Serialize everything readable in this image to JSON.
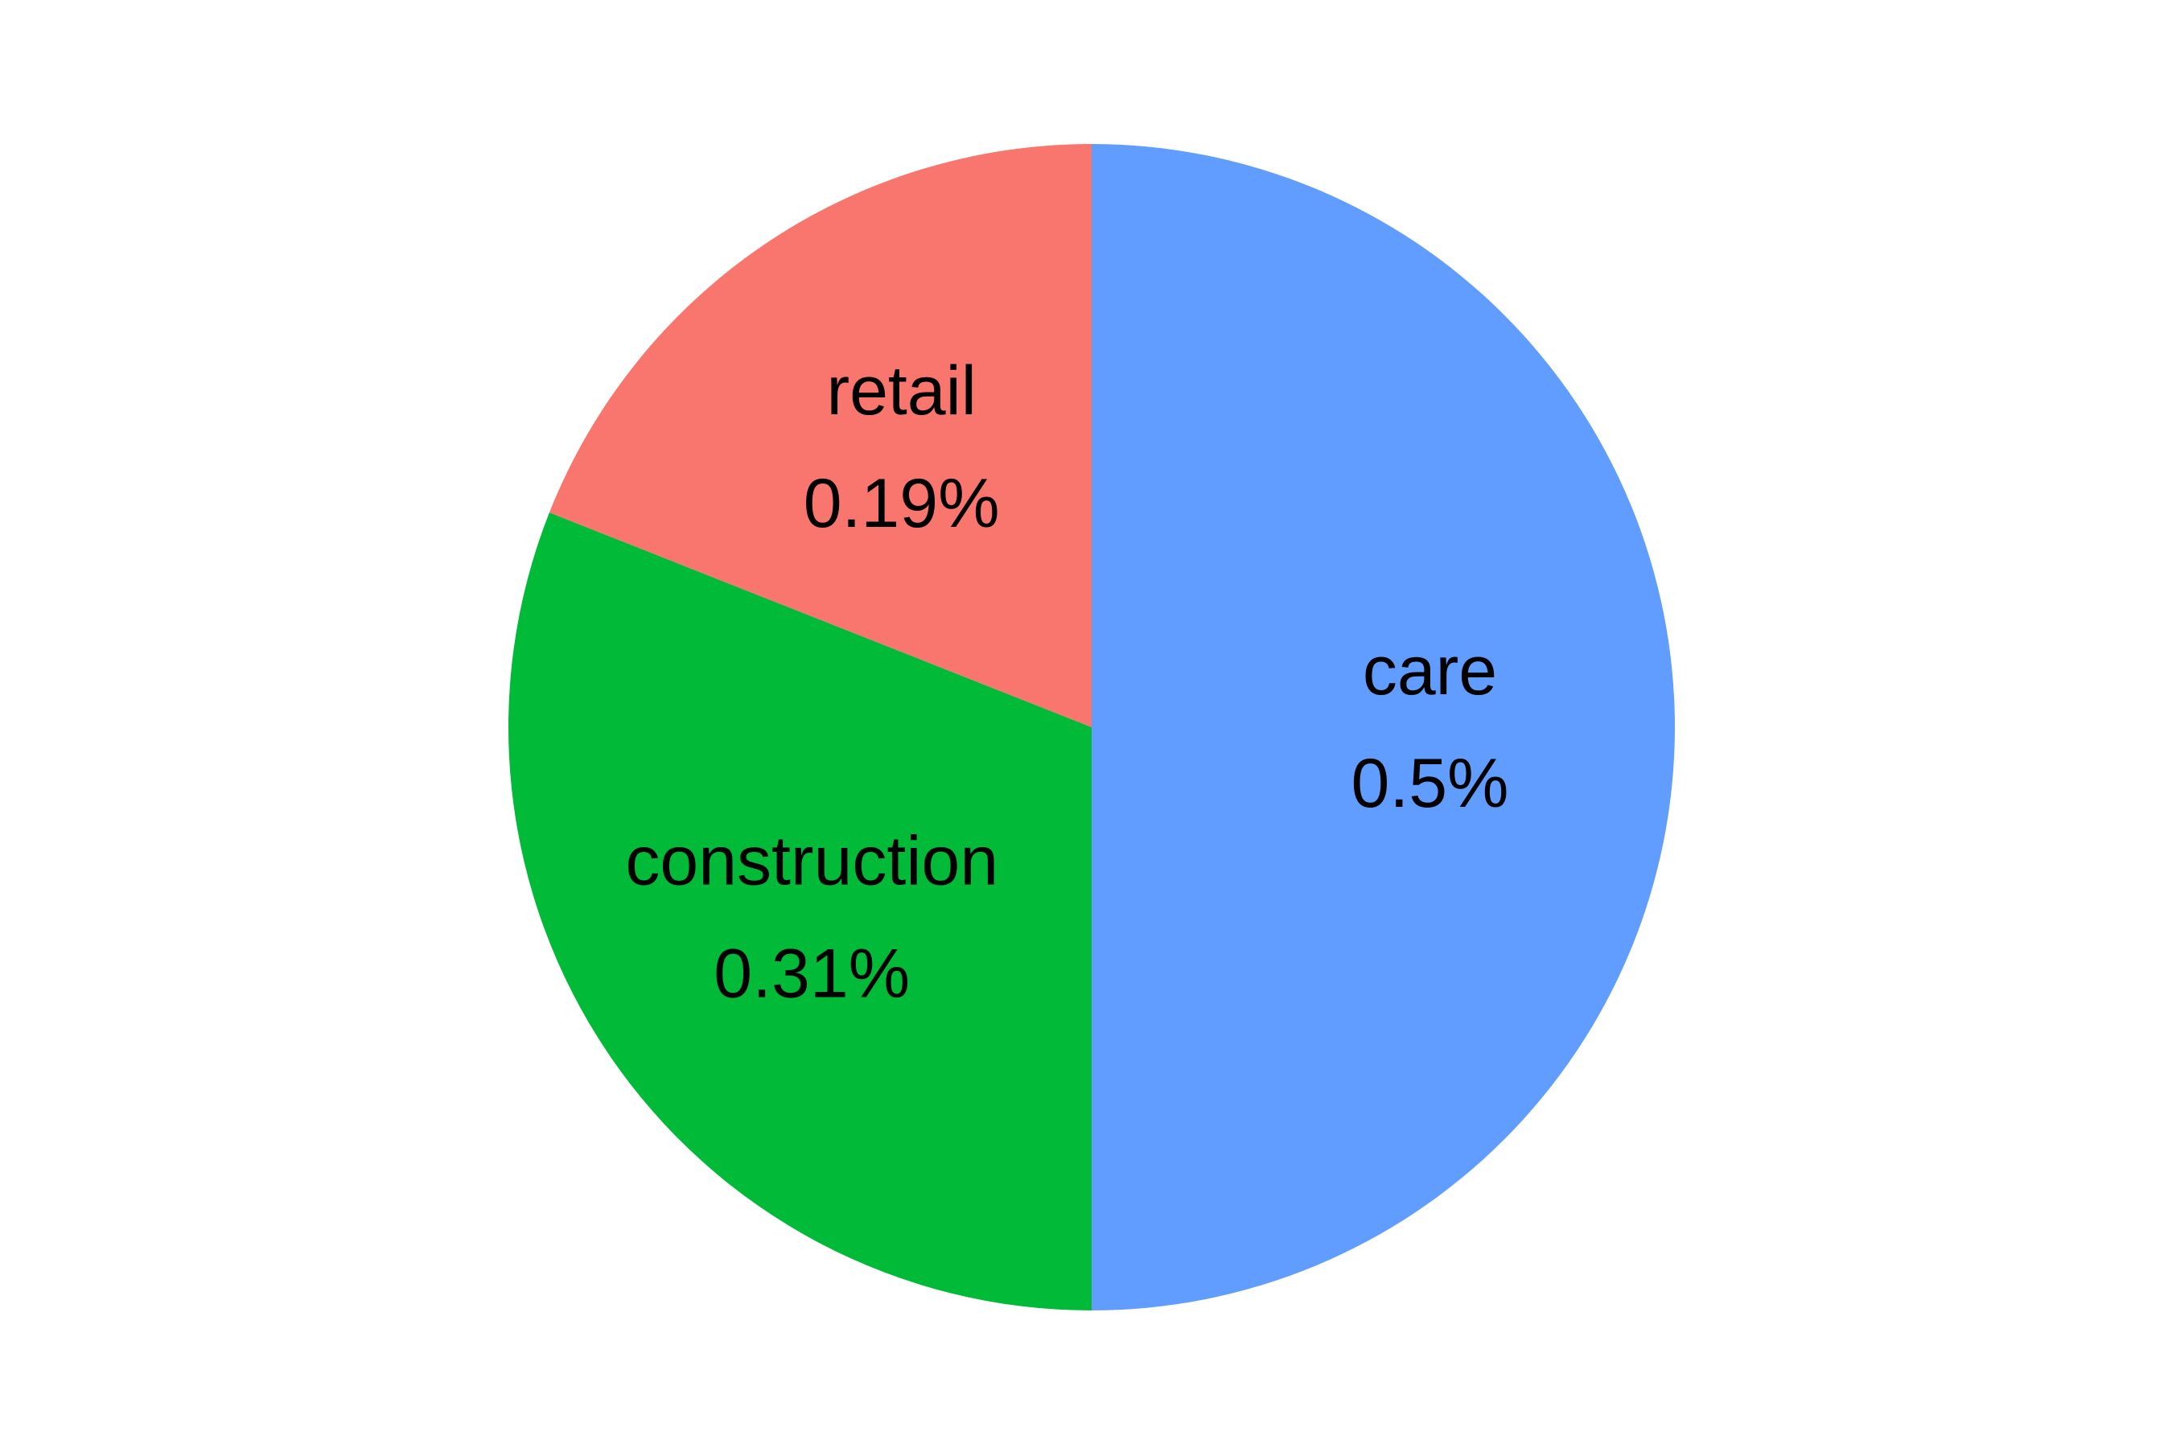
{
  "chart_data": {
    "type": "pie",
    "title": "",
    "slices": [
      {
        "label": "care",
        "value": 0.5,
        "value_label": "0.5%",
        "color": "#619CFF"
      },
      {
        "label": "construction",
        "value": 0.31,
        "value_label": "0.31%",
        "color": "#00BA38"
      },
      {
        "label": "retail",
        "value": 0.19,
        "value_label": "0.19%",
        "color": "#F8766D"
      }
    ],
    "start_angle": "12 o'clock",
    "direction": "clockwise",
    "legend": "none"
  }
}
